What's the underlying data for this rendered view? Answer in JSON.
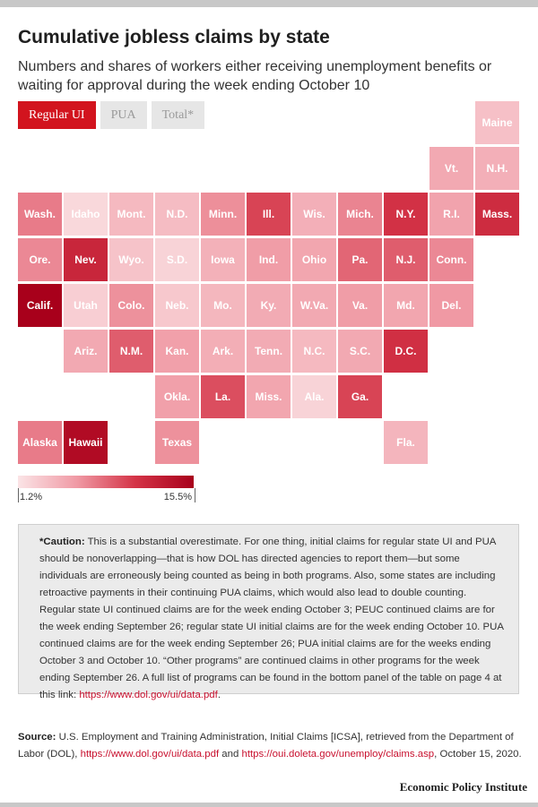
{
  "header": {
    "title": "Cumulative jobless claims by state",
    "subtitle": "Numbers and shares of workers either receiving unemployment benefits or waiting for approval during the week ending October 10"
  },
  "tabs": [
    {
      "label": "Regular UI",
      "active": true
    },
    {
      "label": "PUA",
      "active": false
    },
    {
      "label": "Total*",
      "active": false
    }
  ],
  "chart_data": {
    "type": "heatmap",
    "layout": "tile grid map of U.S. states",
    "value_unit": "% share",
    "legend": {
      "min_label": "1.2%",
      "max_label": "15.5%",
      "min": 1.2,
      "max": 15.5
    },
    "colors": {
      "low": "#fbe4e6",
      "mid1": "#f09aa5",
      "mid2": "#d43447",
      "high": "#a8001b"
    },
    "tiles": [
      {
        "label": "Maine",
        "row": 0,
        "col": 10,
        "value": 3.5
      },
      {
        "label": "Vt.",
        "row": 1,
        "col": 9,
        "value": 5.0
      },
      {
        "label": "N.H.",
        "row": 1,
        "col": 10,
        "value": 4.6
      },
      {
        "label": "Wash.",
        "row": 2,
        "col": 0,
        "value": 7.4
      },
      {
        "label": "Idaho",
        "row": 2,
        "col": 1,
        "value": 2.0
      },
      {
        "label": "Mont.",
        "row": 2,
        "col": 2,
        "value": 4.0
      },
      {
        "label": "N.D.",
        "row": 2,
        "col": 3,
        "value": 3.8
      },
      {
        "label": "Minn.",
        "row": 2,
        "col": 4,
        "value": 6.5
      },
      {
        "label": "Ill.",
        "row": 2,
        "col": 5,
        "value": 10.0
      },
      {
        "label": "Wis.",
        "row": 2,
        "col": 6,
        "value": 4.6
      },
      {
        "label": "Mich.",
        "row": 2,
        "col": 7,
        "value": 7.0
      },
      {
        "label": "N.Y.",
        "row": 2,
        "col": 8,
        "value": 11.0
      },
      {
        "label": "R.I.",
        "row": 2,
        "col": 9,
        "value": 5.4
      },
      {
        "label": "Mass.",
        "row": 2,
        "col": 10,
        "value": 11.5
      },
      {
        "label": "Ore.",
        "row": 3,
        "col": 0,
        "value": 6.8
      },
      {
        "label": "Nev.",
        "row": 3,
        "col": 1,
        "value": 12.0
      },
      {
        "label": "Wyo.",
        "row": 3,
        "col": 2,
        "value": 3.3
      },
      {
        "label": "S.D.",
        "row": 3,
        "col": 3,
        "value": 2.3
      },
      {
        "label": "Iowa",
        "row": 3,
        "col": 4,
        "value": 4.5
      },
      {
        "label": "Ind.",
        "row": 3,
        "col": 5,
        "value": 5.8
      },
      {
        "label": "Ohio",
        "row": 3,
        "col": 6,
        "value": 5.2
      },
      {
        "label": "Pa.",
        "row": 3,
        "col": 7,
        "value": 8.4
      },
      {
        "label": "N.J.",
        "row": 3,
        "col": 8,
        "value": 8.8
      },
      {
        "label": "Conn.",
        "row": 3,
        "col": 9,
        "value": 6.8
      },
      {
        "label": "Calif.",
        "row": 4,
        "col": 0,
        "value": 15.5
      },
      {
        "label": "Utah",
        "row": 4,
        "col": 1,
        "value": 2.6
      },
      {
        "label": "Colo.",
        "row": 4,
        "col": 2,
        "value": 6.4
      },
      {
        "label": "Neb.",
        "row": 4,
        "col": 3,
        "value": 3.0
      },
      {
        "label": "Mo.",
        "row": 4,
        "col": 4,
        "value": 4.1
      },
      {
        "label": "Ky.",
        "row": 4,
        "col": 5,
        "value": 4.9
      },
      {
        "label": "W.Va.",
        "row": 4,
        "col": 6,
        "value": 5.0
      },
      {
        "label": "Va.",
        "row": 4,
        "col": 7,
        "value": 5.8
      },
      {
        "label": "Md.",
        "row": 4,
        "col": 8,
        "value": 5.2
      },
      {
        "label": "Del.",
        "row": 4,
        "col": 9,
        "value": 6.0
      },
      {
        "label": "Ariz.",
        "row": 5,
        "col": 1,
        "value": 5.0
      },
      {
        "label": "N.M.",
        "row": 5,
        "col": 2,
        "value": 8.8
      },
      {
        "label": "Kan.",
        "row": 5,
        "col": 3,
        "value": 5.6
      },
      {
        "label": "Ark.",
        "row": 5,
        "col": 4,
        "value": 4.7
      },
      {
        "label": "Tenn.",
        "row": 5,
        "col": 5,
        "value": 4.9
      },
      {
        "label": "N.C.",
        "row": 5,
        "col": 6,
        "value": 4.0
      },
      {
        "label": "S.C.",
        "row": 5,
        "col": 7,
        "value": 5.0
      },
      {
        "label": "D.C.",
        "row": 5,
        "col": 8,
        "value": 11.2
      },
      {
        "label": "Okla.",
        "row": 6,
        "col": 3,
        "value": 5.6
      },
      {
        "label": "La.",
        "row": 6,
        "col": 4,
        "value": 9.5
      },
      {
        "label": "Miss.",
        "row": 6,
        "col": 5,
        "value": 5.2
      },
      {
        "label": "Ala.",
        "row": 6,
        "col": 6,
        "value": 2.3
      },
      {
        "label": "Ga.",
        "row": 6,
        "col": 7,
        "value": 10.0
      },
      {
        "label": "Alaska",
        "row": 7,
        "col": 0,
        "value": 7.4
      },
      {
        "label": "Hawaii",
        "row": 7,
        "col": 1,
        "value": 14.5
      },
      {
        "label": "Texas",
        "row": 7,
        "col": 3,
        "value": 6.4
      },
      {
        "label": "Fla.",
        "row": 7,
        "col": 8,
        "value": 4.2
      }
    ]
  },
  "caution": {
    "label": "*Caution:",
    "text": " This is a substantial overestimate. For one thing, initial claims for regular state UI and PUA should be nonoverlapping—that is how DOL has directed agencies to report them—but some individuals are erroneously being counted as being in both programs. Also, some states are including retroactive payments in their continuing PUA claims, which would also lead to double counting. Regular state UI continued claims are for the week ending October 3; PEUC continued claims are for the week ending September 26; regular state UI initial claims are for the week ending October 10. PUA continued claims are for the week ending September 26; PUA initial claims are for the weeks ending October 3 and October 10. “Other programs” are continued claims in other programs for the week ending September 26. A full list of programs can be found in the bottom panel of the table on page 4 at this link: ",
    "link": "https://www.dol.gov/ui/data.pdf",
    "end": "."
  },
  "source": {
    "label": "Source:",
    "text1": " U.S. Employment and Training Administration, Initial Claims [ICSA], retrieved from the Department of Labor (DOL), ",
    "link1": "https://www.dol.gov/ui/data.pdf",
    "text2": " and ",
    "link2": "https://oui.doleta.gov/unemploy/claims.asp",
    "text3": ", October 15, 2020."
  },
  "branding": "Economic Policy Institute"
}
